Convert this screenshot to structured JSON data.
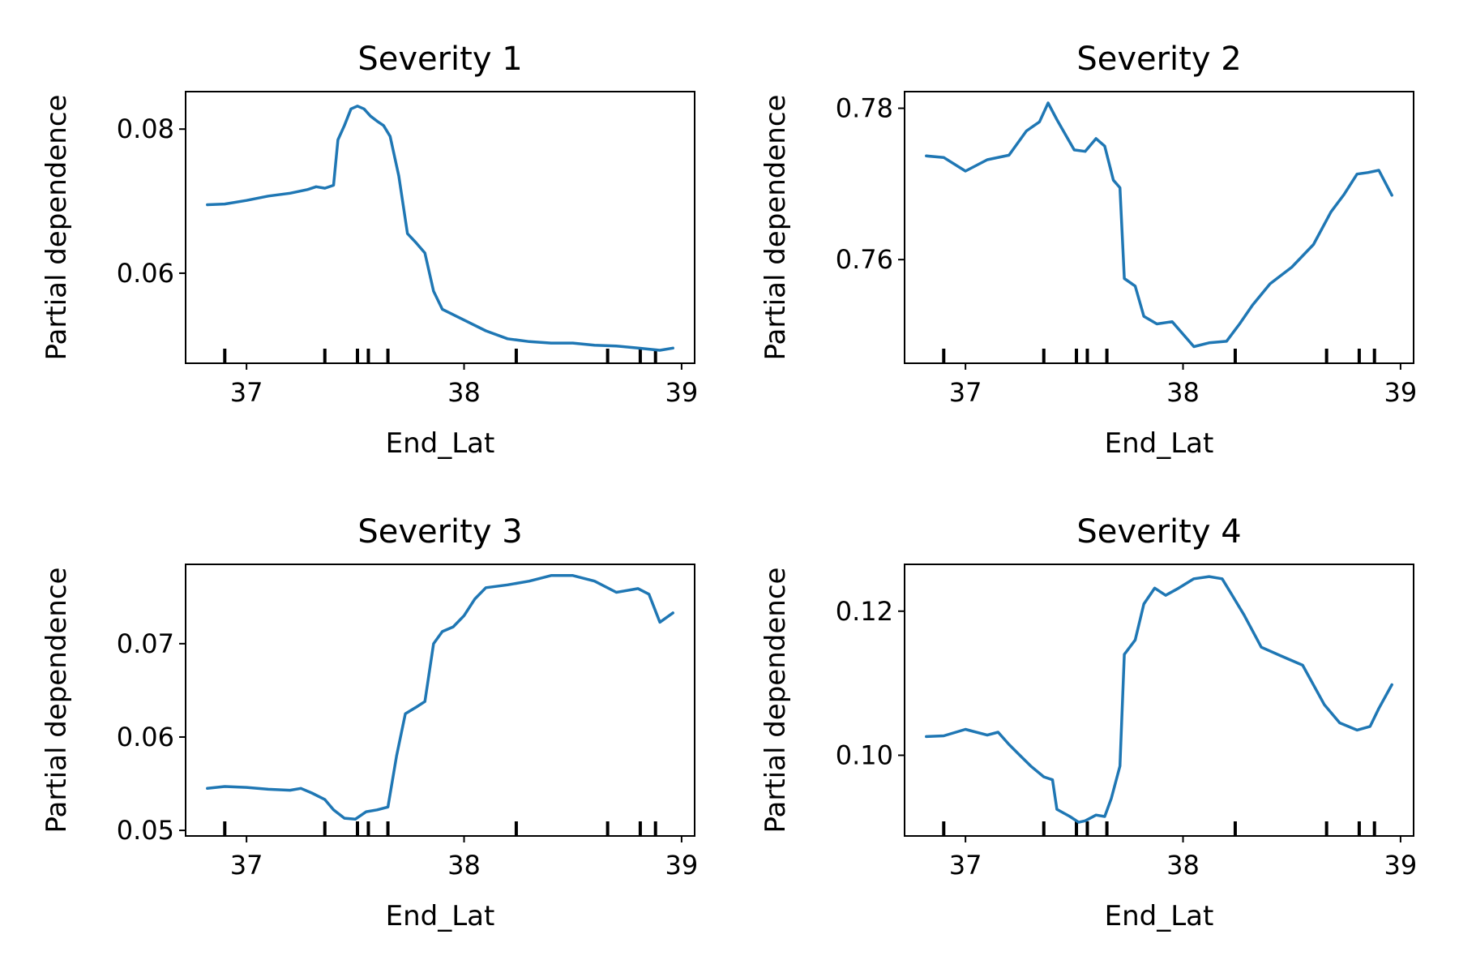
{
  "colors": {
    "line": "#1f77b4"
  },
  "chart_data": [
    {
      "type": "line",
      "title": "Severity 1",
      "xlabel": "End_Lat",
      "ylabel": "Partial dependence",
      "xlim": [
        36.72,
        39.06
      ],
      "ylim": [
        0.0475,
        0.0852
      ],
      "xticks": [
        37,
        38,
        39
      ],
      "xtick_labels": [
        "37",
        "38",
        "39"
      ],
      "yticks": [
        0.06,
        0.08
      ],
      "ytick_labels": [
        "0.06",
        "0.08"
      ],
      "rug": [
        36.9,
        37.36,
        37.51,
        37.56,
        37.65,
        38.24,
        38.66,
        38.81,
        38.88
      ],
      "x": [
        36.82,
        36.9,
        37.0,
        37.1,
        37.2,
        37.28,
        37.32,
        37.36,
        37.4,
        37.42,
        37.45,
        37.48,
        37.51,
        37.54,
        37.57,
        37.6,
        37.63,
        37.66,
        37.7,
        37.74,
        37.78,
        37.82,
        37.86,
        37.9,
        38.0,
        38.1,
        38.2,
        38.3,
        38.4,
        38.5,
        38.6,
        38.7,
        38.8,
        38.9,
        38.96
      ],
      "series": [
        {
          "values": [
            0.0695,
            0.0696,
            0.0701,
            0.0707,
            0.0711,
            0.0716,
            0.072,
            0.0718,
            0.0722,
            0.0785,
            0.0805,
            0.0828,
            0.0832,
            0.0828,
            0.0818,
            0.0811,
            0.0805,
            0.079,
            0.0735,
            0.0655,
            0.0642,
            0.0628,
            0.0575,
            0.055,
            0.0535,
            0.052,
            0.0509,
            0.0505,
            0.0503,
            0.0503,
            0.05,
            0.0499,
            0.0496,
            0.0493,
            0.0496
          ]
        }
      ]
    },
    {
      "type": "line",
      "title": "Severity 2",
      "xlabel": "End_Lat",
      "ylabel": "Partial dependence",
      "xlim": [
        36.72,
        39.06
      ],
      "ylim": [
        0.7463,
        0.7822
      ],
      "xticks": [
        37,
        38,
        39
      ],
      "xtick_labels": [
        "37",
        "38",
        "39"
      ],
      "yticks": [
        0.76,
        0.78
      ],
      "ytick_labels": [
        "0.76",
        "0.78"
      ],
      "rug": [
        36.9,
        37.36,
        37.51,
        37.56,
        37.65,
        38.24,
        38.66,
        38.81,
        38.88
      ],
      "x": [
        36.82,
        36.9,
        37.0,
        37.1,
        37.2,
        37.28,
        37.34,
        37.38,
        37.42,
        37.46,
        37.5,
        37.55,
        37.6,
        37.64,
        37.68,
        37.71,
        37.73,
        37.78,
        37.82,
        37.88,
        37.95,
        38.05,
        38.12,
        38.2,
        38.26,
        38.32,
        38.4,
        38.5,
        38.6,
        38.68,
        38.74,
        38.8,
        38.85,
        38.9,
        38.96
      ],
      "series": [
        {
          "values": [
            0.7737,
            0.7735,
            0.7717,
            0.7732,
            0.7738,
            0.777,
            0.7782,
            0.7807,
            0.7785,
            0.7765,
            0.7745,
            0.7743,
            0.776,
            0.775,
            0.7705,
            0.7695,
            0.7575,
            0.7565,
            0.7525,
            0.7515,
            0.7518,
            0.7485,
            0.749,
            0.7492,
            0.7515,
            0.754,
            0.7568,
            0.759,
            0.762,
            0.7663,
            0.7686,
            0.7713,
            0.7715,
            0.7718,
            0.7685
          ]
        }
      ]
    },
    {
      "type": "line",
      "title": "Severity 3",
      "xlabel": "End_Lat",
      "ylabel": "Partial dependence",
      "xlim": [
        36.72,
        39.06
      ],
      "ylim": [
        0.0494,
        0.0785
      ],
      "xticks": [
        37,
        38,
        39
      ],
      "xtick_labels": [
        "37",
        "38",
        "39"
      ],
      "yticks": [
        0.05,
        0.06,
        0.07
      ],
      "ytick_labels": [
        "0.05",
        "0.06",
        "0.07"
      ],
      "rug": [
        36.9,
        37.36,
        37.51,
        37.56,
        37.65,
        38.24,
        38.66,
        38.81,
        38.88
      ],
      "x": [
        36.82,
        36.9,
        37.0,
        37.1,
        37.2,
        37.25,
        37.3,
        37.36,
        37.4,
        37.45,
        37.5,
        37.55,
        37.6,
        37.65,
        37.69,
        37.73,
        37.78,
        37.82,
        37.86,
        37.9,
        37.95,
        38.0,
        38.05,
        38.1,
        38.2,
        38.3,
        38.4,
        38.5,
        38.6,
        38.7,
        38.8,
        38.85,
        38.9,
        38.96
      ],
      "series": [
        {
          "values": [
            0.0545,
            0.0547,
            0.0546,
            0.0544,
            0.0543,
            0.0545,
            0.054,
            0.0533,
            0.0522,
            0.0513,
            0.0512,
            0.052,
            0.0522,
            0.0525,
            0.058,
            0.0625,
            0.0632,
            0.0638,
            0.07,
            0.0713,
            0.0718,
            0.073,
            0.0748,
            0.076,
            0.0763,
            0.0767,
            0.0773,
            0.0773,
            0.0767,
            0.0755,
            0.0759,
            0.0753,
            0.0723,
            0.0733
          ]
        }
      ]
    },
    {
      "type": "line",
      "title": "Severity 4",
      "xlabel": "End_Lat",
      "ylabel": "Partial dependence",
      "xlim": [
        36.72,
        39.06
      ],
      "ylim": [
        0.0888,
        0.1265
      ],
      "xticks": [
        37,
        38,
        39
      ],
      "xtick_labels": [
        "37",
        "38",
        "39"
      ],
      "yticks": [
        0.1,
        0.12
      ],
      "ytick_labels": [
        "0.10",
        "0.12"
      ],
      "rug": [
        36.9,
        37.36,
        37.51,
        37.56,
        37.65,
        38.24,
        38.66,
        38.81,
        38.88
      ],
      "x": [
        36.82,
        36.9,
        37.0,
        37.1,
        37.15,
        37.2,
        37.25,
        37.3,
        37.36,
        37.4,
        37.42,
        37.48,
        37.52,
        37.55,
        37.6,
        37.64,
        37.67,
        37.71,
        37.73,
        37.78,
        37.82,
        37.87,
        37.92,
        37.98,
        38.05,
        38.12,
        38.18,
        38.22,
        38.28,
        38.36,
        38.45,
        38.55,
        38.65,
        38.72,
        38.8,
        38.86,
        38.9,
        38.96
      ],
      "series": [
        {
          "values": [
            0.1026,
            0.1027,
            0.1036,
            0.1028,
            0.1032,
            0.1015,
            0.1,
            0.0985,
            0.097,
            0.0966,
            0.0925,
            0.0915,
            0.0907,
            0.0909,
            0.0917,
            0.0915,
            0.094,
            0.0985,
            0.114,
            0.116,
            0.121,
            0.1232,
            0.1222,
            0.1232,
            0.1245,
            0.1248,
            0.1245,
            0.1225,
            0.1195,
            0.115,
            0.1138,
            0.1125,
            0.107,
            0.1045,
            0.1035,
            0.104,
            0.1065,
            0.1098
          ]
        }
      ]
    }
  ]
}
